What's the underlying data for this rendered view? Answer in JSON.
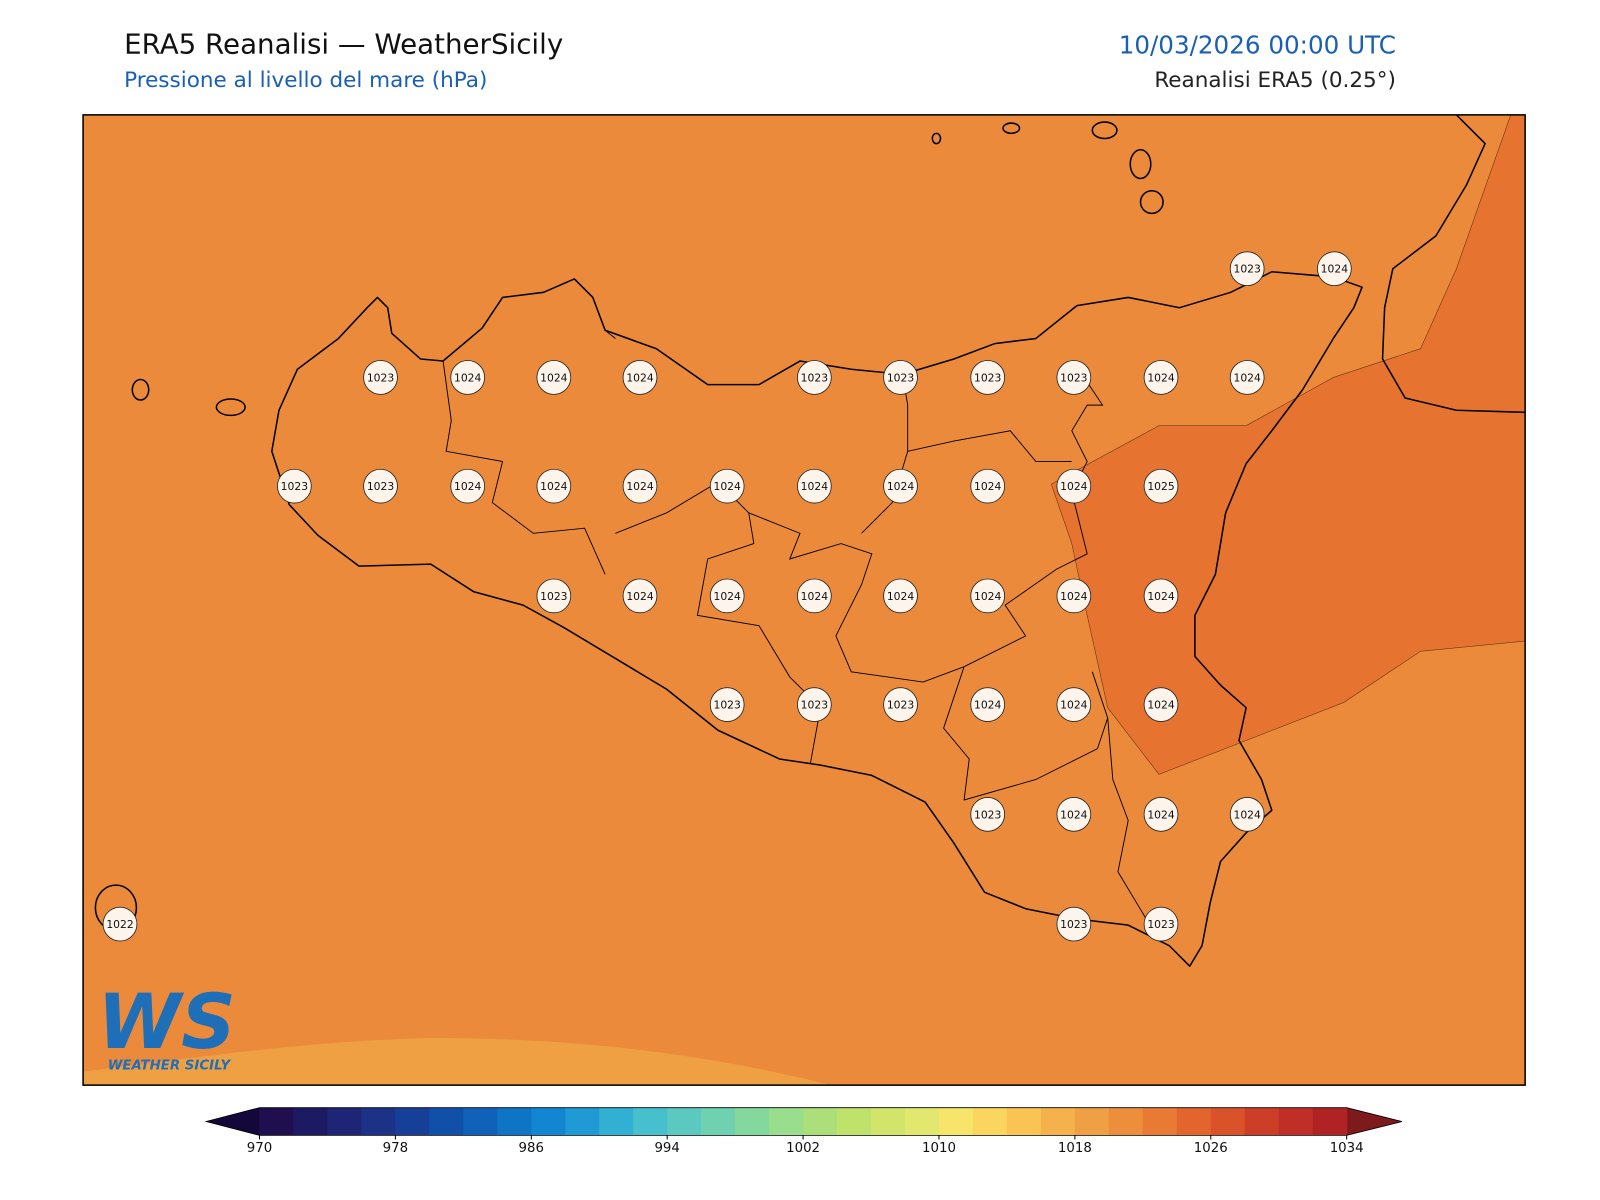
{
  "header": {
    "title": "ERA5 Reanalisi — WeatherSicily",
    "subtitle": "Pressione al livello del mare (hPa)",
    "date": "10/03/2026 00:00 UTC",
    "source": "Reanalisi ERA5 (0.25°)"
  },
  "stations": [
    1023,
    1024,
    1023,
    1024,
    1024,
    1024,
    1023,
    1023,
    1023,
    1023,
    1024,
    1024,
    1023,
    1023,
    1024,
    1024,
    1024,
    1024,
    1024,
    1024,
    1024,
    1024,
    1025,
    1023,
    1024,
    1024,
    1024,
    1024,
    1024,
    1024,
    1024,
    1023,
    1023,
    1023,
    1024,
    1024,
    1024,
    1023,
    1024,
    1024,
    1024,
    1022,
    1023,
    1023
  ],
  "colorbar": {
    "range": [
      970,
      1034
    ],
    "ticks": [
      970,
      978,
      986,
      994,
      1002,
      1010,
      1018,
      1026,
      1034
    ],
    "colors": [
      "#1f0f4e",
      "#1c1a63",
      "#1d2574",
      "#1b3286",
      "#163f98",
      "#1150a8",
      "#0f62b8",
      "#0d74c6",
      "#1286d0",
      "#1f9ad5",
      "#32b0d3",
      "#45c0cc",
      "#5bc9bf",
      "#6fd1b0",
      "#84d89e",
      "#98de8c",
      "#acdf7a",
      "#bfe36a",
      "#d2e56a",
      "#e2e86f",
      "#f6e46b",
      "#fbd65e",
      "#f9c454",
      "#f5b24c",
      "#f0a044",
      "#ec8e3c",
      "#e87a34",
      "#e2652e",
      "#d9522a",
      "#cd3e28",
      "#bf2e27",
      "#b12225"
    ],
    "extend_colors": [
      "#14083a",
      "#7f1a1c"
    ]
  },
  "logo": {
    "letters": "WS",
    "text": "WEATHER SICILY"
  }
}
